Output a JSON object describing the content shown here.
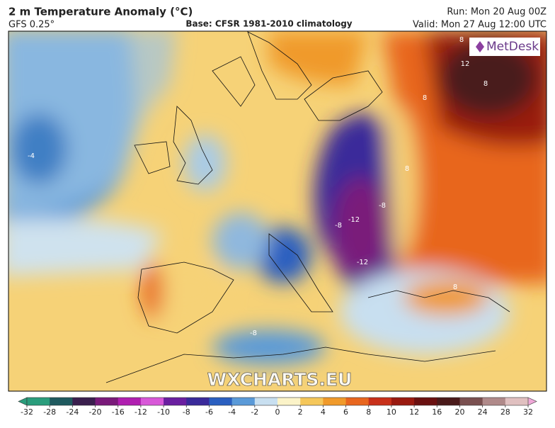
{
  "header": {
    "title": "2 m Temperature Anomaly (°C)",
    "model": "GFS 0.25°",
    "base": "Base: CFSR 1981-2010 climatology",
    "run": "Run: Mon 20 Aug 00Z",
    "valid": "Valid: Mon 27 Aug 12:00 UTC"
  },
  "map": {
    "logo": "MetDesk",
    "watermark": "WXCHARTS.EU",
    "contour_labels": [
      "8",
      "12",
      "8",
      "8",
      "8",
      "-4",
      "-8",
      "-12",
      "-8",
      "-12",
      "-8",
      "8"
    ]
  },
  "colorbar": {
    "ticks": [
      -32,
      -28,
      -24,
      -20,
      -16,
      -12,
      -10,
      -8,
      -6,
      -4,
      -2,
      0,
      2,
      4,
      6,
      8,
      10,
      12,
      16,
      20,
      24,
      28,
      32
    ],
    "colors": [
      "#2a9d7c",
      "#1f5a5f",
      "#3b1f4e",
      "#7a1a7a",
      "#b01fb0",
      "#d858d8",
      "#6a1fa0",
      "#3a2a9a",
      "#2a5fc0",
      "#5a9ad8",
      "#c8dff0",
      "#fbf3c8",
      "#f5c75a",
      "#f09a2a",
      "#e8661e",
      "#c8301a",
      "#9a1a10",
      "#6a1010",
      "#4a1a1a",
      "#7a5050",
      "#b08a8a",
      "#e0c0c0"
    ]
  }
}
